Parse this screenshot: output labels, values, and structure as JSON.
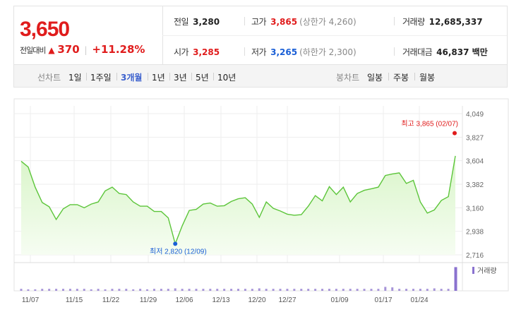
{
  "header": {
    "current_price": "3,650",
    "change_label": "전일대비",
    "change_arrow": "▲",
    "change_value": "370",
    "change_rate": "+11.28%",
    "prev_close": {
      "label": "전일",
      "value": "3,280"
    },
    "high": {
      "label": "고가",
      "value": "3,865",
      "limit": "(상한가 4,260)"
    },
    "volume": {
      "label": "거래량",
      "value": "12,685,337"
    },
    "open": {
      "label": "시가",
      "value": "3,285"
    },
    "low": {
      "label": "저가",
      "value": "3,265",
      "limit": "(하한가 2,300)"
    },
    "trade_amount": {
      "label": "거래대금",
      "value": "46,837 백만"
    }
  },
  "tabs": {
    "line_chart_label": "선차트",
    "periods": [
      "1일",
      "1주일",
      "3개월",
      "1년",
      "3년",
      "5년",
      "10년"
    ],
    "active_period": "3개월",
    "candle_chart_label": "봉차트",
    "candles": [
      "일봉",
      "주봉",
      "월봉"
    ]
  },
  "colors": {
    "up": "#e01c1c",
    "down": "#1a5fd6",
    "line": "#5cc53a",
    "area_top": "#d9f5c9",
    "volume_bar": "#a694d8",
    "volume_bar_last": "#8a72cf",
    "active_tab": "#3a5fcd"
  },
  "chart_data": {
    "type": "area",
    "y_ticks": [
      "4,049",
      "3,827",
      "3,604",
      "3,382",
      "3,160",
      "2,938",
      "2,716"
    ],
    "ylim": [
      2716,
      4049
    ],
    "x_ticks": [
      "11/07",
      "11/15",
      "11/22",
      "11/29",
      "12/06",
      "12/13",
      "12/20",
      "12/27",
      "01/09",
      "01/17",
      "01/24"
    ],
    "values": [
      3600,
      3545,
      3355,
      3210,
      3170,
      3050,
      3150,
      3190,
      3190,
      3160,
      3195,
      3215,
      3320,
      3355,
      3295,
      3285,
      3215,
      3175,
      3175,
      3125,
      3125,
      3065,
      2820,
      2990,
      3135,
      3145,
      3195,
      3205,
      3175,
      3180,
      3220,
      3245,
      3255,
      3195,
      3070,
      3215,
      3155,
      3130,
      3100,
      3090,
      3095,
      3175,
      3275,
      3225,
      3360,
      3285,
      3355,
      3215,
      3295,
      3325,
      3340,
      3355,
      3465,
      3480,
      3490,
      3390,
      3420,
      3215,
      3110,
      3140,
      3230,
      3265,
      3650
    ],
    "max_label": "최고 3,865 (02/07)",
    "min_label": "최저 2,820 (12/09)",
    "max_value": 3865,
    "min_value": 2820,
    "min_index": 22,
    "volume_label": "거래량",
    "volume_values": [
      4,
      3,
      3,
      4,
      4,
      4,
      4,
      4,
      4,
      4,
      3,
      4,
      3,
      4,
      4,
      4,
      3,
      4,
      3,
      4,
      4,
      4,
      5,
      4,
      4,
      4,
      4,
      4,
      4,
      4,
      4,
      4,
      4,
      4,
      5,
      4,
      4,
      4,
      4,
      4,
      4,
      4,
      4,
      4,
      4,
      4,
      4,
      4,
      4,
      4,
      4,
      4,
      8,
      7,
      4,
      4,
      4,
      4,
      4,
      5,
      4,
      4,
      48
    ]
  }
}
